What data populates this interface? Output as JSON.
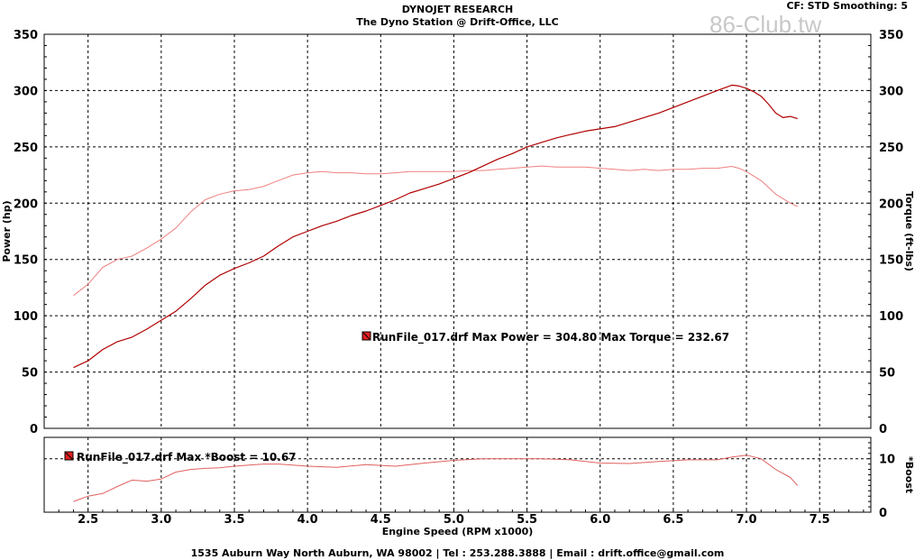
{
  "header": {
    "title": "DYNOJET RESEARCH",
    "subtitle": "The Dyno Station @ Drift-Office, LLC",
    "cf_label": "CF: STD  Smoothing: 5",
    "watermark": "86-Club.tw"
  },
  "footer": {
    "text": "1535 Auburn Way North Auburn, WA 98002 | Tel : 253.288.3888 | Email : drift.office@gmail.com"
  },
  "colors": {
    "power": "#b00000",
    "torque": "#f08080",
    "boost": "#e06060",
    "grid": "#000000"
  },
  "chart_data": [
    {
      "type": "line",
      "xlabel": "Engine Speed (RPM x1000)",
      "ylabel": "Power (hp)",
      "ylabel_right": "Torque (ft-lbs)",
      "xlim": [
        2.2,
        7.85
      ],
      "ylim": [
        0,
        350
      ],
      "x_ticks": [
        "2.5",
        "3.0",
        "3.5",
        "4.0",
        "4.5",
        "5.0",
        "5.5",
        "6.0",
        "6.5",
        "7.0",
        "7.5"
      ],
      "y_ticks": [
        "0",
        "50",
        "100",
        "150",
        "200",
        "250",
        "300",
        "350"
      ],
      "grid": true,
      "legend_label": "RunFile_017.drf Max Power = 304.80     Max Torque = 232.67",
      "series": [
        {
          "name": "Power",
          "x": [
            2.4,
            2.5,
            2.6,
            2.7,
            2.8,
            2.9,
            3.0,
            3.1,
            3.2,
            3.3,
            3.4,
            3.5,
            3.6,
            3.7,
            3.8,
            3.9,
            4.0,
            4.1,
            4.2,
            4.3,
            4.4,
            4.5,
            4.6,
            4.7,
            4.8,
            4.9,
            5.0,
            5.1,
            5.2,
            5.3,
            5.4,
            5.5,
            5.6,
            5.7,
            5.8,
            5.9,
            6.0,
            6.1,
            6.2,
            6.3,
            6.4,
            6.5,
            6.6,
            6.7,
            6.8,
            6.9,
            6.95,
            7.0,
            7.05,
            7.1,
            7.15,
            7.2,
            7.25,
            7.3,
            7.35
          ],
          "values": [
            54,
            60,
            70,
            77,
            81,
            88,
            96,
            104,
            115,
            127,
            136,
            142,
            147,
            153,
            162,
            170,
            175,
            180,
            184,
            189,
            193,
            198,
            203,
            209,
            213,
            217,
            222,
            227,
            233,
            239,
            244,
            250,
            254,
            258,
            261,
            264,
            266,
            268,
            272,
            276,
            280,
            285,
            290,
            295,
            300,
            304.8,
            304,
            302,
            299,
            295,
            288,
            280,
            276,
            277,
            275
          ]
        },
        {
          "name": "Torque",
          "x": [
            2.4,
            2.5,
            2.6,
            2.7,
            2.8,
            2.9,
            3.0,
            3.1,
            3.2,
            3.3,
            3.4,
            3.5,
            3.6,
            3.7,
            3.8,
            3.9,
            4.0,
            4.1,
            4.2,
            4.3,
            4.4,
            4.5,
            4.6,
            4.7,
            4.8,
            4.9,
            5.0,
            5.1,
            5.2,
            5.3,
            5.4,
            5.5,
            5.6,
            5.7,
            5.8,
            5.9,
            6.0,
            6.1,
            6.2,
            6.3,
            6.4,
            6.5,
            6.6,
            6.7,
            6.8,
            6.9,
            6.95,
            7.0,
            7.1,
            7.2,
            7.3,
            7.35
          ],
          "values": [
            118,
            128,
            143,
            150,
            153,
            160,
            168,
            178,
            192,
            203,
            208,
            211,
            212,
            215,
            220,
            225,
            227,
            228,
            227,
            227,
            226,
            226,
            227,
            228,
            228,
            228,
            228,
            229,
            229,
            230,
            231,
            232,
            233,
            232,
            232,
            232,
            231,
            230,
            229,
            230,
            229,
            230,
            230,
            231,
            231,
            232.67,
            231,
            228,
            220,
            208,
            200,
            197
          ]
        }
      ]
    },
    {
      "type": "line",
      "xlabel": "Engine Speed (RPM x1000)",
      "ylabel_right": "*Boost",
      "xlim": [
        2.2,
        7.85
      ],
      "ylim": [
        0,
        14
      ],
      "y_ticks": [
        "0",
        "10"
      ],
      "legend_label": "RunFile_017.drf Max *Boost = 10.67",
      "series": [
        {
          "name": "*Boost",
          "x": [
            2.4,
            2.5,
            2.6,
            2.7,
            2.8,
            2.9,
            3.0,
            3.1,
            3.2,
            3.3,
            3.4,
            3.5,
            3.6,
            3.7,
            3.8,
            3.9,
            4.0,
            4.2,
            4.4,
            4.6,
            4.8,
            5.0,
            5.2,
            5.4,
            5.6,
            5.8,
            6.0,
            6.2,
            6.4,
            6.6,
            6.8,
            6.9,
            7.0,
            7.1,
            7.2,
            7.3,
            7.35
          ],
          "values": [
            2.0,
            3.0,
            3.5,
            4.8,
            6.0,
            5.8,
            6.2,
            7.5,
            8.0,
            8.2,
            8.3,
            8.6,
            8.8,
            9.0,
            9.0,
            8.8,
            8.6,
            8.4,
            8.9,
            8.6,
            9.2,
            9.7,
            10.0,
            10.0,
            10.0,
            9.8,
            9.2,
            9.1,
            9.5,
            9.8,
            9.8,
            10.3,
            10.67,
            10.0,
            8.0,
            6.5,
            5.0
          ]
        }
      ]
    }
  ]
}
